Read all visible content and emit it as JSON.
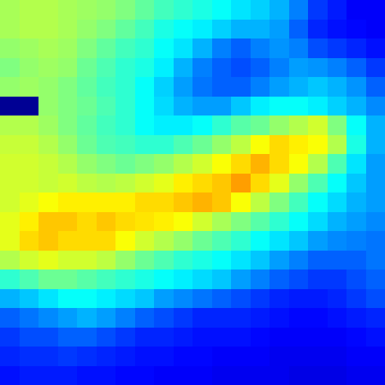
{
  "chart_data": {
    "type": "heatmap",
    "tick_labels": false,
    "zlim": [
      0,
      1
    ],
    "cells": [
      [
        0.54,
        0.55,
        0.55,
        0.54,
        0.53,
        0.52,
        0.5,
        0.47,
        0.44,
        0.42,
        0.4,
        0.38,
        0.35,
        0.33,
        0.3,
        0.25,
        0.18,
        0.15,
        0.12,
        0.12
      ],
      [
        0.54,
        0.55,
        0.55,
        0.54,
        0.52,
        0.5,
        0.47,
        0.44,
        0.4,
        0.38,
        0.36,
        0.33,
        0.3,
        0.3,
        0.28,
        0.22,
        0.16,
        0.14,
        0.13,
        0.12
      ],
      [
        0.52,
        0.53,
        0.54,
        0.53,
        0.5,
        0.47,
        0.44,
        0.42,
        0.38,
        0.35,
        0.3,
        0.25,
        0.22,
        0.25,
        0.27,
        0.25,
        0.2,
        0.18,
        0.16,
        0.14
      ],
      [
        0.5,
        0.52,
        0.53,
        0.52,
        0.48,
        0.45,
        0.42,
        0.4,
        0.36,
        0.3,
        0.25,
        0.22,
        0.2,
        0.22,
        0.25,
        0.28,
        0.27,
        0.25,
        0.22,
        0.18
      ],
      [
        0.52,
        0.53,
        0.52,
        0.5,
        0.47,
        0.44,
        0.42,
        0.38,
        0.33,
        0.28,
        0.24,
        0.22,
        0.22,
        0.25,
        0.28,
        0.3,
        0.32,
        0.3,
        0.27,
        0.22
      ],
      [
        0.02,
        0.02,
        0.52,
        0.5,
        0.48,
        0.45,
        0.42,
        0.38,
        0.34,
        0.3,
        0.28,
        0.28,
        0.32,
        0.36,
        0.38,
        0.38,
        0.36,
        0.33,
        0.3,
        0.26
      ],
      [
        0.55,
        0.55,
        0.53,
        0.5,
        0.47,
        0.44,
        0.42,
        0.38,
        0.36,
        0.36,
        0.38,
        0.42,
        0.46,
        0.48,
        0.52,
        0.55,
        0.58,
        0.5,
        0.38,
        0.3
      ],
      [
        0.57,
        0.57,
        0.55,
        0.52,
        0.48,
        0.45,
        0.44,
        0.42,
        0.42,
        0.45,
        0.48,
        0.52,
        0.56,
        0.62,
        0.66,
        0.64,
        0.62,
        0.55,
        0.4,
        0.3
      ],
      [
        0.58,
        0.58,
        0.57,
        0.55,
        0.52,
        0.5,
        0.48,
        0.5,
        0.52,
        0.55,
        0.58,
        0.62,
        0.66,
        0.7,
        0.66,
        0.62,
        0.55,
        0.45,
        0.35,
        0.28
      ],
      [
        0.58,
        0.58,
        0.57,
        0.58,
        0.56,
        0.55,
        0.56,
        0.58,
        0.6,
        0.64,
        0.66,
        0.68,
        0.72,
        0.66,
        0.6,
        0.52,
        0.45,
        0.38,
        0.32,
        0.28
      ],
      [
        0.58,
        0.6,
        0.62,
        0.64,
        0.64,
        0.64,
        0.64,
        0.66,
        0.66,
        0.68,
        0.7,
        0.68,
        0.62,
        0.56,
        0.5,
        0.44,
        0.38,
        0.34,
        0.3,
        0.28
      ],
      [
        0.6,
        0.64,
        0.68,
        0.68,
        0.66,
        0.68,
        0.66,
        0.65,
        0.64,
        0.62,
        0.58,
        0.54,
        0.5,
        0.46,
        0.42,
        0.38,
        0.34,
        0.3,
        0.28,
        0.26
      ],
      [
        0.6,
        0.66,
        0.68,
        0.66,
        0.66,
        0.66,
        0.62,
        0.58,
        0.55,
        0.52,
        0.48,
        0.45,
        0.42,
        0.38,
        0.35,
        0.32,
        0.28,
        0.26,
        0.25,
        0.24
      ],
      [
        0.55,
        0.58,
        0.6,
        0.58,
        0.58,
        0.56,
        0.52,
        0.48,
        0.45,
        0.42,
        0.4,
        0.38,
        0.35,
        0.32,
        0.28,
        0.25,
        0.22,
        0.22,
        0.22,
        0.24
      ],
      [
        0.42,
        0.45,
        0.48,
        0.48,
        0.46,
        0.44,
        0.42,
        0.4,
        0.38,
        0.36,
        0.34,
        0.32,
        0.28,
        0.25,
        0.22,
        0.2,
        0.18,
        0.18,
        0.2,
        0.22
      ],
      [
        0.3,
        0.32,
        0.35,
        0.38,
        0.38,
        0.36,
        0.34,
        0.32,
        0.28,
        0.26,
        0.24,
        0.22,
        0.2,
        0.18,
        0.16,
        0.15,
        0.15,
        0.16,
        0.18,
        0.2
      ],
      [
        0.22,
        0.24,
        0.26,
        0.28,
        0.3,
        0.28,
        0.25,
        0.22,
        0.2,
        0.18,
        0.16,
        0.16,
        0.16,
        0.15,
        0.14,
        0.13,
        0.13,
        0.14,
        0.15,
        0.16
      ],
      [
        0.18,
        0.2,
        0.2,
        0.22,
        0.22,
        0.2,
        0.18,
        0.16,
        0.16,
        0.15,
        0.14,
        0.14,
        0.14,
        0.13,
        0.12,
        0.12,
        0.12,
        0.12,
        0.13,
        0.14
      ],
      [
        0.16,
        0.17,
        0.17,
        0.18,
        0.17,
        0.16,
        0.15,
        0.14,
        0.14,
        0.13,
        0.13,
        0.12,
        0.12,
        0.12,
        0.11,
        0.11,
        0.11,
        0.11,
        0.12,
        0.12
      ],
      [
        0.14,
        0.15,
        0.15,
        0.15,
        0.14,
        0.14,
        0.13,
        0.13,
        0.12,
        0.12,
        0.12,
        0.11,
        0.11,
        0.11,
        0.11,
        0.1,
        0.1,
        0.1,
        0.11,
        0.11
      ]
    ]
  }
}
